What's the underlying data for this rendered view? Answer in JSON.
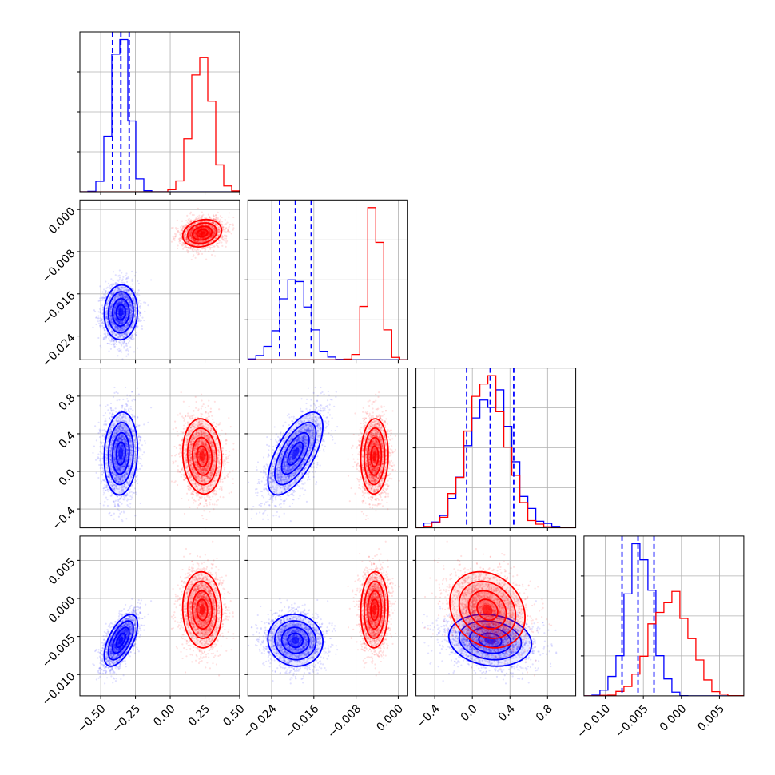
{
  "chart_data": {
    "type": "corner",
    "title": "",
    "colors": {
      "blue": "#0000ff",
      "red": "#ff0000",
      "grid": "#b0b0b0"
    },
    "grid": true,
    "parameters": [
      {
        "range": [
          -0.65,
          0.5
        ],
        "ticks": [
          -0.5,
          -0.25,
          0.0,
          0.25,
          0.5
        ],
        "tick_labels": [
          "−0.50",
          "−0.25",
          "0.00",
          "0.25",
          "0.50"
        ]
      },
      {
        "range": [
          -0.0285,
          0.0018
        ],
        "ticks": [
          -0.024,
          -0.016,
          -0.008,
          0.0
        ],
        "tick_labels": [
          "−0.024",
          "−0.016",
          "−0.008",
          "0.000"
        ]
      },
      {
        "range": [
          -0.6,
          1.1
        ],
        "ticks": [
          -0.4,
          0.0,
          0.4,
          0.8
        ],
        "tick_labels": [
          "−0.4",
          "0.0",
          "0.4",
          "0.8"
        ]
      },
      {
        "range": [
          -0.0128,
          0.0082
        ],
        "ticks": [
          -0.01,
          -0.005,
          0.0,
          0.005
        ],
        "tick_labels": [
          "−0.010",
          "−0.005",
          "0.000",
          "0.005"
        ]
      }
    ],
    "series": [
      {
        "color": "blue",
        "mean": [
          -0.355,
          -0.0195,
          0.19,
          -0.0055
        ],
        "std": [
          0.06,
          0.0026,
          0.22,
          0.0017
        ],
        "corr": [
          [
            1.0,
            0.05,
            0.1,
            0.6
          ],
          [
            0.05,
            1.0,
            0.65,
            -0.05
          ],
          [
            0.1,
            0.65,
            1.0,
            -0.15
          ],
          [
            0.6,
            -0.05,
            -0.15,
            1.0
          ]
        ],
        "quantile_lines": [
          [
            -0.415,
            -0.355,
            -0.295
          ],
          [
            -0.0225,
            -0.0195,
            -0.0165
          ],
          [
            -0.06,
            0.19,
            0.44
          ],
          [
            -0.0078,
            -0.0057,
            -0.0036
          ]
        ]
      },
      {
        "color": "red",
        "mean": [
          0.23,
          -0.0045,
          0.16,
          -0.0015
        ],
        "std": [
          0.07,
          0.0013,
          0.2,
          0.0025
        ],
        "corr": [
          [
            1.0,
            0.2,
            -0.1,
            -0.05
          ],
          [
            0.2,
            1.0,
            0.05,
            0.05
          ],
          [
            -0.1,
            0.05,
            1.0,
            -0.2
          ],
          [
            -0.05,
            0.05,
            -0.2,
            1.0
          ]
        ],
        "quantile_lines": []
      }
    ]
  }
}
